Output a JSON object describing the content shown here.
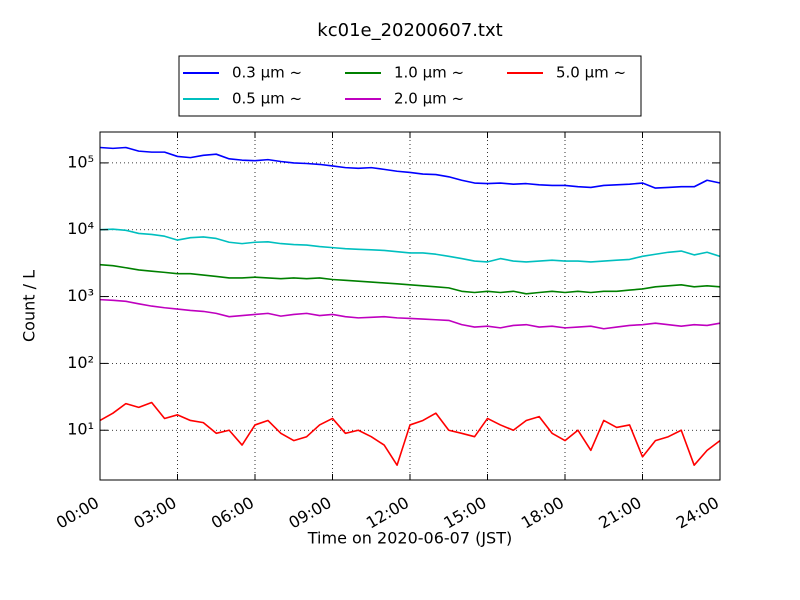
{
  "chart_data": {
    "type": "line",
    "title": "kc01e_20200607.txt",
    "x_label": "Time on 2020-06-07 (JST)",
    "y_label": "Count / L",
    "x": [
      0,
      0.5,
      1,
      1.5,
      2,
      2.5,
      3,
      3.5,
      4,
      4.5,
      5,
      5.5,
      6,
      6.5,
      7,
      7.5,
      8,
      8.5,
      9,
      9.5,
      10,
      10.5,
      11,
      11.5,
      12,
      12.5,
      13,
      13.5,
      14,
      14.5,
      15,
      15.5,
      16,
      16.5,
      17,
      17.5,
      18,
      18.5,
      19,
      19.5,
      20,
      20.5,
      21,
      21.5,
      22,
      22.5,
      23,
      23.5,
      24
    ],
    "series": [
      {
        "name": "0.3 μm  ~",
        "color": "#0000ff",
        "values": [
          170000,
          165000,
          170000,
          150000,
          145000,
          145000,
          125000,
          120000,
          130000,
          135000,
          115000,
          110000,
          108000,
          112000,
          105000,
          100000,
          98000,
          95000,
          90000,
          85000,
          83000,
          85000,
          80000,
          75000,
          72000,
          68000,
          67000,
          62000,
          55000,
          50000,
          49000,
          50000,
          48000,
          49000,
          47000,
          46000,
          46000,
          44000,
          43000,
          46000,
          47000,
          48000,
          50000,
          42000,
          43000,
          44000,
          44000,
          55000,
          50000
        ]
      },
      {
        "name": "0.5 μm  ~",
        "color": "#00bfbf",
        "values": [
          10000,
          10200,
          9800,
          8800,
          8500,
          8000,
          7000,
          7600,
          7800,
          7400,
          6500,
          6200,
          6500,
          6600,
          6200,
          6000,
          5900,
          5600,
          5400,
          5200,
          5100,
          5000,
          4900,
          4700,
          4500,
          4500,
          4300,
          4000,
          3700,
          3400,
          3300,
          3700,
          3400,
          3300,
          3400,
          3500,
          3400,
          3400,
          3300,
          3400,
          3500,
          3600,
          4000,
          4300,
          4600,
          4800,
          4200,
          4600,
          4000
        ]
      },
      {
        "name": "1.0 μm  ~",
        "color": "#008000",
        "values": [
          3000,
          2900,
          2700,
          2500,
          2400,
          2300,
          2200,
          2200,
          2100,
          2000,
          1900,
          1900,
          1950,
          1900,
          1850,
          1900,
          1850,
          1900,
          1800,
          1750,
          1700,
          1650,
          1600,
          1550,
          1500,
          1450,
          1400,
          1350,
          1200,
          1150,
          1200,
          1150,
          1200,
          1100,
          1150,
          1200,
          1150,
          1200,
          1150,
          1200,
          1200,
          1250,
          1300,
          1400,
          1450,
          1500,
          1400,
          1450,
          1400
        ]
      },
      {
        "name": "2.0 μm  ~",
        "color": "#bf00bf",
        "values": [
          900,
          880,
          850,
          780,
          720,
          680,
          650,
          620,
          600,
          560,
          500,
          520,
          540,
          560,
          510,
          540,
          560,
          520,
          540,
          500,
          480,
          490,
          500,
          480,
          470,
          460,
          450,
          440,
          380,
          350,
          360,
          340,
          370,
          380,
          350,
          360,
          340,
          350,
          360,
          330,
          350,
          370,
          380,
          400,
          380,
          360,
          380,
          370,
          400
        ]
      },
      {
        "name": "5.0 μm  ~",
        "color": "#ff0000",
        "values": [
          14,
          18,
          25,
          22,
          26,
          15,
          17,
          14,
          13,
          9,
          10,
          6,
          12,
          14,
          9,
          7,
          8,
          12,
          15,
          9,
          10,
          8,
          6,
          3,
          12,
          14,
          18,
          10,
          9,
          8,
          15,
          12,
          10,
          14,
          16,
          9,
          7,
          10,
          5,
          14,
          11,
          12,
          4,
          7,
          8,
          10,
          3,
          5,
          7
        ]
      }
    ],
    "xlim": [
      0,
      24
    ],
    "xticks": [
      {
        "value": 0,
        "label": "00:00"
      },
      {
        "value": 3,
        "label": "03:00"
      },
      {
        "value": 6,
        "label": "06:00"
      },
      {
        "value": 9,
        "label": "09:00"
      },
      {
        "value": 12,
        "label": "12:00"
      },
      {
        "value": 15,
        "label": "15:00"
      },
      {
        "value": 18,
        "label": "18:00"
      },
      {
        "value": 21,
        "label": "21:00"
      },
      {
        "value": 24,
        "label": "24:00"
      }
    ],
    "ylim": [
      1.8,
      290000
    ],
    "yticks": [
      {
        "value": 10,
        "label": "10¹"
      },
      {
        "value": 100,
        "label": "10²"
      },
      {
        "value": 1000,
        "label": "10³"
      },
      {
        "value": 10000,
        "label": "10⁴"
      },
      {
        "value": 100000,
        "label": "10⁵"
      }
    ],
    "log_y": true,
    "grid": true,
    "legend": "top"
  }
}
